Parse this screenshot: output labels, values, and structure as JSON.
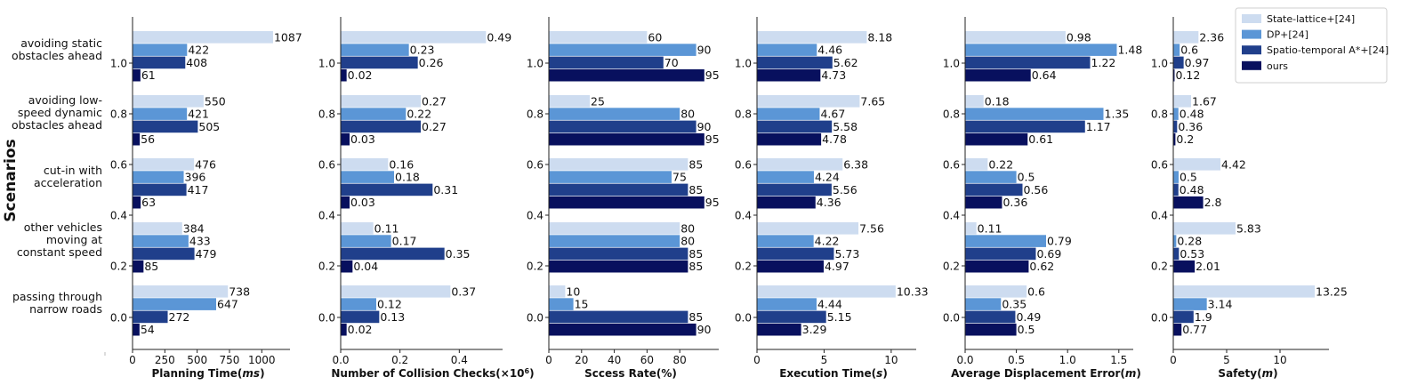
{
  "figure": {
    "y_title": "Scenarios",
    "scenarios": [
      [
        "avoiding static",
        "obstacles ahead"
      ],
      [
        "avoiding low-",
        "speed dynamic",
        "obstacles ahead"
      ],
      [
        "cut-in with",
        "acceleration"
      ],
      [
        "other vehicles",
        "moving at",
        "constant speed"
      ],
      [
        "passing through",
        "narrow roads"
      ]
    ],
    "y_ticks": [
      "1.0",
      "0.8",
      "0.6",
      "0.4",
      "0.2",
      "0.0"
    ],
    "legend": {
      "placement": "top-right",
      "entries": [
        "State-lattice+[24]",
        "DP+[24]",
        "Spatio-temporal A*+[24]",
        "ours"
      ]
    },
    "colors": [
      "#cddcf0",
      "#5b96d6",
      "#203f8b",
      "#08105e"
    ]
  },
  "chart_data": [
    {
      "type": "bar",
      "orientation": "horizontal",
      "xlabel_main": "Planning Time(",
      "xlabel_unit": "ms",
      "xlabel_close": ")",
      "xlim": [
        0,
        1170
      ],
      "xticks": [
        0,
        250,
        500,
        750,
        1000
      ],
      "xtick_labels": [
        "0",
        "250",
        "500",
        "750",
        "1000"
      ],
      "series": [
        {
          "name": "State-lattice+[24]",
          "values": [
            1087,
            550,
            476,
            384,
            738
          ],
          "labels": [
            "1087",
            "550",
            "476",
            "384",
            "738"
          ]
        },
        {
          "name": "DP+[24]",
          "values": [
            422,
            421,
            396,
            433,
            647
          ],
          "labels": [
            "422",
            "421",
            "396",
            "433",
            "647"
          ]
        },
        {
          "name": "Spatio-temporal A*+[24]",
          "values": [
            408,
            505,
            417,
            479,
            272
          ],
          "labels": [
            "408",
            "505",
            "417",
            "479",
            "272"
          ]
        },
        {
          "name": "ours",
          "values": [
            61,
            56,
            63,
            85,
            54
          ],
          "labels": [
            "61",
            "56",
            "63",
            "85",
            "54"
          ]
        }
      ]
    },
    {
      "type": "bar",
      "orientation": "horizontal",
      "xlabel_main": "Number of Collision Checks(×10",
      "xlabel_sup": "6",
      "xlabel_close": ")",
      "xlim": [
        0,
        0.525
      ],
      "xticks": [
        0,
        0.2,
        0.4
      ],
      "xtick_labels": [
        "0.0",
        "0.2",
        "0.4"
      ],
      "series": [
        {
          "name": "State-lattice+[24]",
          "values": [
            0.49,
            0.27,
            0.16,
            0.11,
            0.37
          ],
          "labels": [
            "0.49",
            "0.27",
            "0.16",
            "0.11",
            "0.37"
          ]
        },
        {
          "name": "DP+[24]",
          "values": [
            0.23,
            0.22,
            0.18,
            0.17,
            0.12
          ],
          "labels": [
            "0.23",
            "0.22",
            "0.18",
            "0.17",
            "0.12"
          ]
        },
        {
          "name": "Spatio-temporal A*+[24]",
          "values": [
            0.26,
            0.27,
            0.31,
            0.35,
            0.13
          ],
          "labels": [
            "0.26",
            "0.27",
            "0.31",
            "0.35",
            "0.13"
          ]
        },
        {
          "name": "ours",
          "values": [
            0.02,
            0.03,
            0.03,
            0.04,
            0.02
          ],
          "labels": [
            "0.02",
            "0.03",
            "0.03",
            "0.04",
            "0.02"
          ]
        }
      ]
    },
    {
      "type": "bar",
      "orientation": "horizontal",
      "xlabel_main": "Sccess Rate(%)",
      "xlim": [
        0,
        100
      ],
      "xticks": [
        0,
        20,
        40,
        60,
        80
      ],
      "xtick_labels": [
        "0",
        "20",
        "40",
        "60",
        "80"
      ],
      "series": [
        {
          "name": "State-lattice+[24]",
          "values": [
            60,
            25,
            85,
            80,
            10
          ],
          "labels": [
            "60",
            "25",
            "85",
            "80",
            "10"
          ]
        },
        {
          "name": "DP+[24]",
          "values": [
            90,
            80,
            75,
            80,
            15
          ],
          "labels": [
            "90",
            "80",
            "75",
            "80",
            "15"
          ]
        },
        {
          "name": "Spatio-temporal A*+[24]",
          "values": [
            70,
            90,
            85,
            85,
            85
          ],
          "labels": [
            "70",
            "90",
            "85",
            "85",
            "85"
          ]
        },
        {
          "name": "ours",
          "values": [
            95,
            95,
            95,
            85,
            90
          ],
          "labels": [
            "95",
            "95",
            "95",
            "85",
            "90"
          ]
        }
      ]
    },
    {
      "type": "bar",
      "orientation": "horizontal",
      "xlabel_main": "Execution Time(",
      "xlabel_unit": "s",
      "xlabel_close": ")",
      "xlim": [
        0,
        11.4
      ],
      "xticks": [
        0,
        5,
        10
      ],
      "xtick_labels": [
        "0",
        "5",
        "10"
      ],
      "series": [
        {
          "name": "State-lattice+[24]",
          "values": [
            8.18,
            7.65,
            6.38,
            7.56,
            10.33
          ],
          "labels": [
            "8.18",
            "7.65",
            "6.38",
            "7.56",
            "10.33"
          ]
        },
        {
          "name": "DP+[24]",
          "values": [
            4.46,
            4.67,
            4.24,
            4.22,
            4.44
          ],
          "labels": [
            "4.46",
            "4.67",
            "4.24",
            "4.22",
            "4.44"
          ]
        },
        {
          "name": "Spatio-temporal A*+[24]",
          "values": [
            5.62,
            5.58,
            5.56,
            5.73,
            5.15
          ],
          "labels": [
            "5.62",
            "5.58",
            "5.56",
            "5.73",
            "5.15"
          ]
        },
        {
          "name": "ours",
          "values": [
            4.73,
            4.78,
            4.36,
            4.97,
            3.29
          ],
          "labels": [
            "4.73",
            "4.78",
            "4.36",
            "4.97",
            "3.29"
          ]
        }
      ]
    },
    {
      "type": "bar",
      "orientation": "horizontal",
      "xlabel_main": "Average Displacement Error(",
      "xlabel_unit": "m",
      "xlabel_close": ")",
      "xlim": [
        0,
        1.58
      ],
      "xticks": [
        0,
        0.5,
        1.0,
        1.5
      ],
      "xtick_labels": [
        "0.0",
        "0.5",
        "1.0",
        "1.5"
      ],
      "series": [
        {
          "name": "State-lattice+[24]",
          "values": [
            0.98,
            0.18,
            0.22,
            0.11,
            0.6
          ],
          "labels": [
            "0.98",
            "0.18",
            "0.22",
            "0.11",
            "0.6"
          ]
        },
        {
          "name": "DP+[24]",
          "values": [
            1.48,
            1.35,
            0.5,
            0.79,
            0.35
          ],
          "labels": [
            "1.48",
            "1.35",
            "0.5",
            "0.79",
            "0.35"
          ]
        },
        {
          "name": "Spatio-temporal A*+[24]",
          "values": [
            1.22,
            1.17,
            0.56,
            0.69,
            0.49
          ],
          "labels": [
            "1.22",
            "1.17",
            "0.56",
            "0.69",
            "0.49"
          ]
        },
        {
          "name": "ours",
          "values": [
            0.64,
            0.61,
            0.36,
            0.62,
            0.5
          ],
          "labels": [
            "0.64",
            "0.61",
            "0.36",
            "0.62",
            "0.5"
          ]
        }
      ]
    },
    {
      "type": "bar",
      "orientation": "horizontal",
      "xlabel_main": "Safety(",
      "xlabel_unit": "m",
      "xlabel_close": ")",
      "xlim": [
        0,
        14.0
      ],
      "xticks": [
        0,
        5,
        10
      ],
      "xtick_labels": [
        "0",
        "5",
        "10"
      ],
      "series": [
        {
          "name": "State-lattice+[24]",
          "values": [
            2.36,
            1.67,
            4.42,
            5.83,
            13.25
          ],
          "labels": [
            "2.36",
            "1.67",
            "4.42",
            "5.83",
            "13.25"
          ]
        },
        {
          "name": "DP+[24]",
          "values": [
            0.6,
            0.48,
            0.5,
            0.28,
            3.14
          ],
          "labels": [
            "0.6",
            "0.48",
            "0.5",
            "0.28",
            "3.14"
          ]
        },
        {
          "name": "Spatio-temporal A*+[24]",
          "values": [
            0.97,
            0.36,
            0.48,
            0.53,
            1.9
          ],
          "labels": [
            "0.97",
            "0.36",
            "0.48",
            "0.53",
            "1.9"
          ]
        },
        {
          "name": "ours",
          "values": [
            0.12,
            0.2,
            2.8,
            2.01,
            0.77
          ],
          "labels": [
            "0.12",
            "0.2",
            "2.8",
            "2.01",
            "0.77"
          ]
        }
      ]
    }
  ]
}
